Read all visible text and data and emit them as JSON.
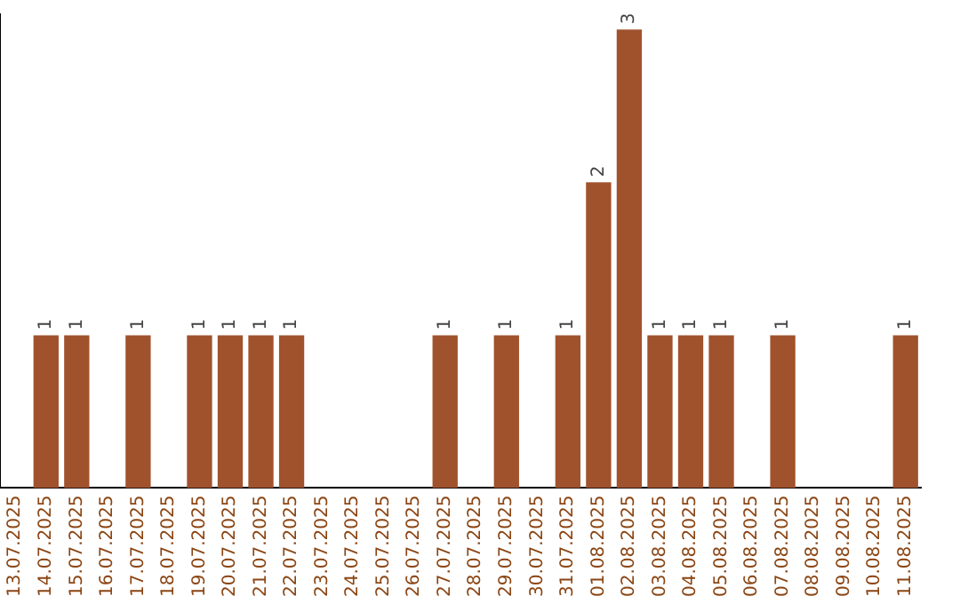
{
  "chart_data": {
    "type": "bar",
    "categories": [
      "13.07.2025",
      "14.07.2025",
      "15.07.2025",
      "16.07.2025",
      "17.07.2025",
      "18.07.2025",
      "19.07.2025",
      "20.07.2025",
      "21.07.2025",
      "22.07.2025",
      "23.07.2025",
      "24.07.2025",
      "25.07.2025",
      "26.07.2025",
      "27.07.2025",
      "28.07.2025",
      "29.07.2025",
      "30.07.2025",
      "31.07.2025",
      "01.08.2025",
      "02.08.2025",
      "03.08.2025",
      "04.08.2025",
      "05.08.2025",
      "06.08.2025",
      "07.08.2025",
      "08.08.2025",
      "09.08.2025",
      "10.08.2025",
      "11.08.2025"
    ],
    "values": [
      null,
      1,
      1,
      null,
      1,
      null,
      1,
      1,
      1,
      1,
      null,
      null,
      null,
      null,
      1,
      null,
      1,
      null,
      1,
      2,
      3,
      1,
      1,
      1,
      null,
      1,
      null,
      null,
      null,
      1
    ],
    "color": "#a0522d",
    "ylim": [
      0,
      3.1
    ],
    "grid": false,
    "legend": false,
    "tick_labels": "x",
    "data_labels": true
  }
}
